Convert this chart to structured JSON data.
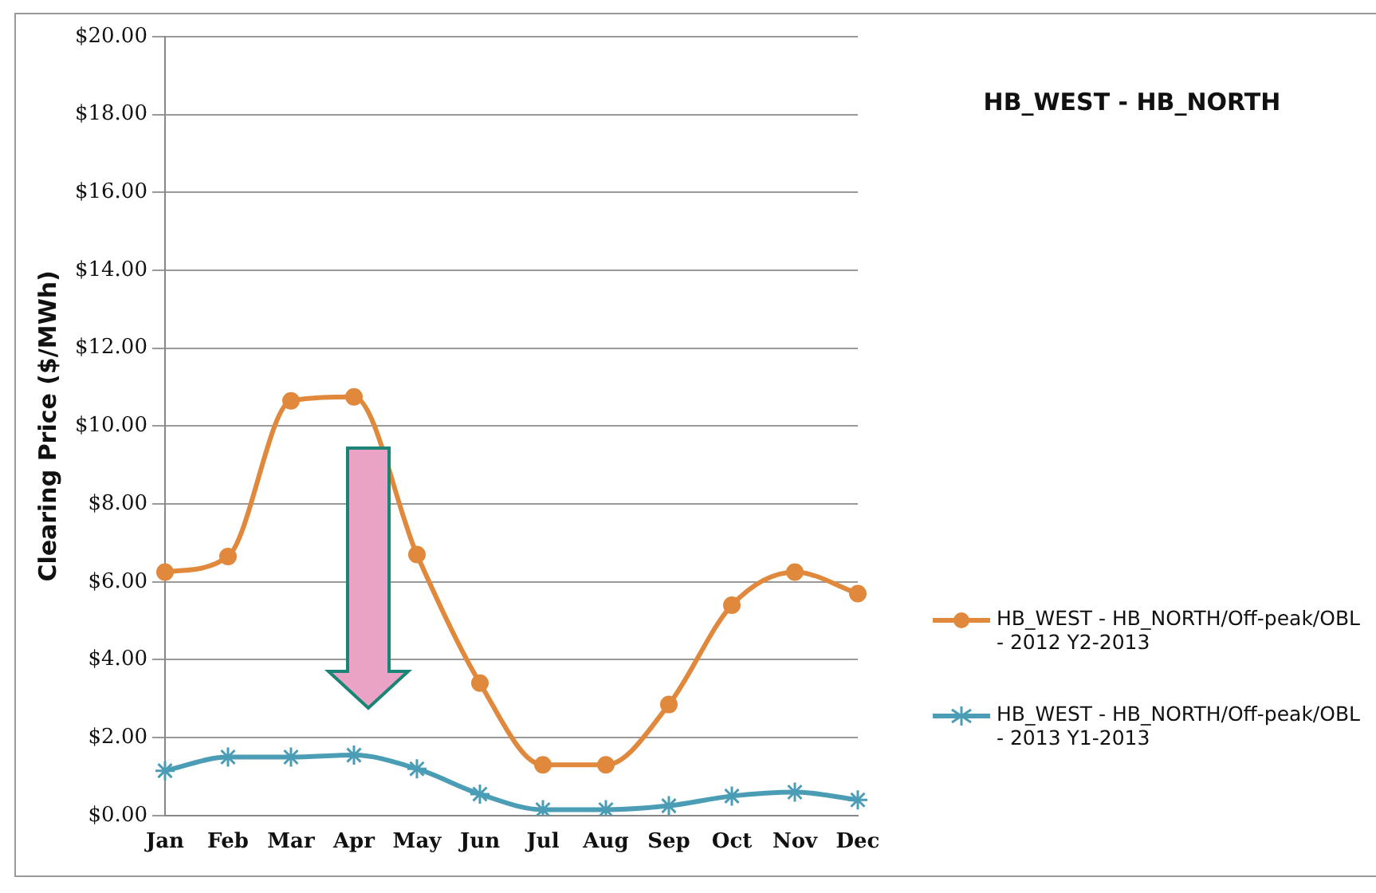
{
  "chart_data": {
    "type": "line",
    "title": "HB_WEST - HB_NORTH",
    "ylabel": "Clearing Price ($/MWh)",
    "categories": [
      "Jan",
      "Feb",
      "Mar",
      "Apr",
      "May",
      "Jun",
      "Jul",
      "Aug",
      "Sep",
      "Oct",
      "Nov",
      "Dec"
    ],
    "series": [
      {
        "name": "HB_WEST - HB_NORTH/Off-peak/OBL - 2012 Y2-2013",
        "color": "#e0883c",
        "marker": "circle",
        "values": [
          6.25,
          6.65,
          10.65,
          10.75,
          6.7,
          3.4,
          1.3,
          1.3,
          2.85,
          5.4,
          6.25,
          5.7
        ]
      },
      {
        "name": "HB_WEST - HB_NORTH/Off-peak/OBL - 2013 Y1-2013",
        "color": "#4a9db5",
        "marker": "cross",
        "values": [
          1.15,
          1.5,
          1.5,
          1.55,
          1.2,
          0.55,
          0.15,
          0.15,
          0.25,
          0.5,
          0.6,
          0.4
        ]
      }
    ],
    "ylim": [
      0,
      20
    ],
    "yticks": [
      {
        "value": 0,
        "label": "$0.00"
      },
      {
        "value": 2,
        "label": "$2.00"
      },
      {
        "value": 4,
        "label": "$4.00"
      },
      {
        "value": 6,
        "label": "$6.00"
      },
      {
        "value": 8,
        "label": "$8.00"
      },
      {
        "value": 10,
        "label": "$10.00"
      },
      {
        "value": 12,
        "label": "$12.00"
      },
      {
        "value": 14,
        "label": "$14.00"
      },
      {
        "value": 16,
        "label": "$16.00"
      },
      {
        "value": 18,
        "label": "$18.00"
      },
      {
        "value": 20,
        "label": "$20.00"
      }
    ],
    "grid": "y",
    "legend": "right"
  }
}
